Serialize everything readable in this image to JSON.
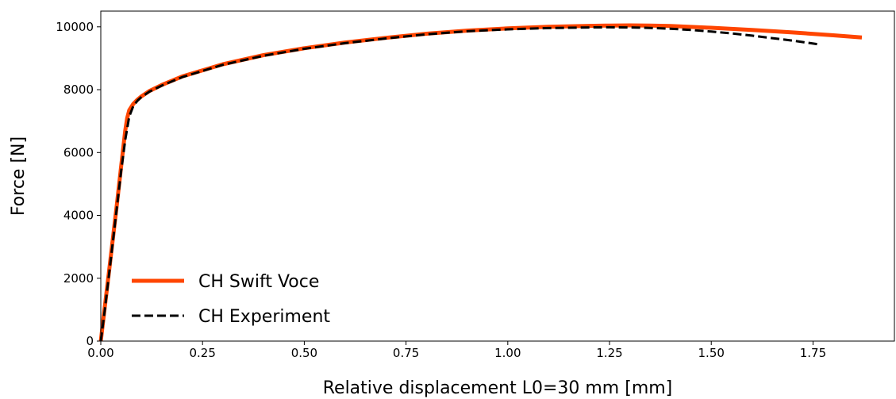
{
  "chart_data": {
    "type": "line",
    "xlabel": "Relative displacement L0=30 mm [mm]",
    "ylabel": "Force [N]",
    "xlim": [
      0,
      1.95
    ],
    "ylim": [
      0,
      10500
    ],
    "xticks": [
      0,
      0.25,
      0.5,
      0.75,
      1.0,
      1.25,
      1.5,
      1.75
    ],
    "xtick_labels": [
      "0.00",
      "0.25",
      "0.50",
      "0.75",
      "1.00",
      "1.25",
      "1.50",
      "1.75"
    ],
    "yticks": [
      0,
      2000,
      4000,
      6000,
      8000,
      10000
    ],
    "ytick_labels": [
      "0",
      "2000",
      "4000",
      "6000",
      "8000",
      "10000"
    ],
    "grid": false,
    "legend_position": "lower-left",
    "series": [
      {
        "name": "CH Swift Voce",
        "color": "#ff4500",
        "style": "solid",
        "x": [
          0,
          0.01,
          0.02,
          0.03,
          0.04,
          0.05,
          0.06,
          0.065,
          0.07,
          0.08,
          0.09,
          0.1,
          0.12,
          0.15,
          0.2,
          0.3,
          0.4,
          0.5,
          0.6,
          0.7,
          0.8,
          0.9,
          1.0,
          1.1,
          1.2,
          1.25,
          1.3,
          1.35,
          1.4,
          1.5,
          1.6,
          1.7,
          1.8,
          1.87
        ],
        "y": [
          0,
          1100,
          2200,
          3300,
          4400,
          5550,
          6700,
          7100,
          7350,
          7550,
          7680,
          7790,
          7960,
          8150,
          8420,
          8810,
          9100,
          9320,
          9500,
          9650,
          9780,
          9880,
          9950,
          10000,
          10030,
          10040,
          10045,
          10040,
          10025,
          9970,
          9900,
          9820,
          9730,
          9660
        ]
      },
      {
        "name": "CH Experiment",
        "color": "#000000",
        "style": "dashed",
        "x": [
          0,
          0.01,
          0.02,
          0.03,
          0.04,
          0.05,
          0.06,
          0.07,
          0.08,
          0.09,
          0.1,
          0.12,
          0.15,
          0.2,
          0.3,
          0.4,
          0.5,
          0.6,
          0.7,
          0.8,
          0.9,
          1.0,
          1.1,
          1.2,
          1.25,
          1.3,
          1.35,
          1.4,
          1.45,
          1.5,
          1.55,
          1.6,
          1.65,
          1.7,
          1.76
        ],
        "y": [
          0,
          1000,
          2100,
          3200,
          4300,
          5400,
          6400,
          7150,
          7480,
          7650,
          7770,
          7940,
          8130,
          8400,
          8790,
          9080,
          9300,
          9480,
          9630,
          9760,
          9860,
          9920,
          9960,
          9980,
          9985,
          9980,
          9965,
          9940,
          9900,
          9850,
          9790,
          9720,
          9640,
          9560,
          9450
        ]
      }
    ]
  }
}
